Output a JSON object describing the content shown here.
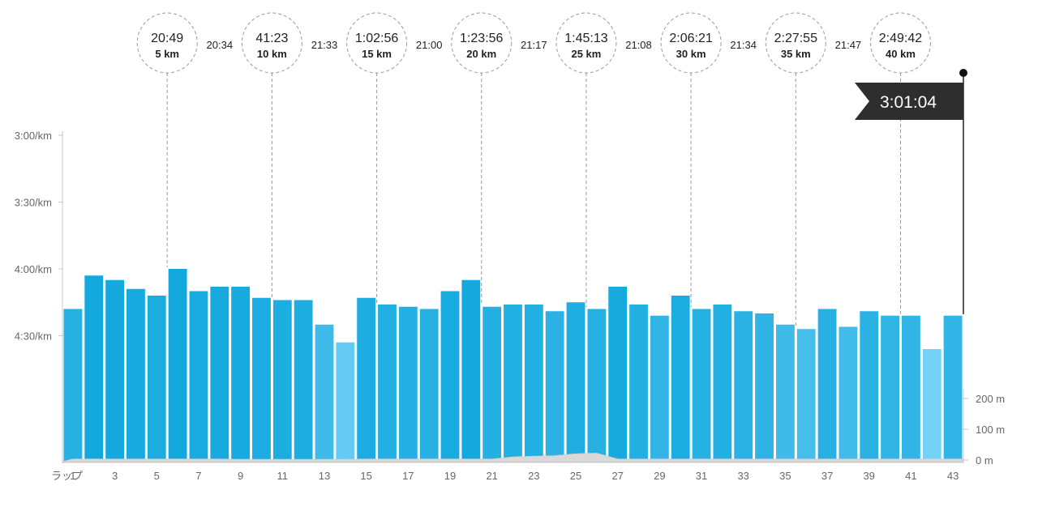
{
  "chart_data": {
    "type": "bar",
    "title": "",
    "xlabel": "",
    "ylabel": "",
    "x_axis_prefix": "ラップ",
    "y_ticks": [
      "3:00/km",
      "3:30/km",
      "4:00/km",
      "4:30/km"
    ],
    "y_range_sec_per_km": [
      180,
      300
    ],
    "elevation_ticks": [
      "200 m",
      "100 m",
      "0 m"
    ],
    "elevation_range_m": [
      0,
      250
    ],
    "x_tick_labels": [
      "1",
      "3",
      "5",
      "7",
      "9",
      "11",
      "13",
      "15",
      "17",
      "19",
      "21",
      "23",
      "25",
      "27",
      "29",
      "31",
      "33",
      "35",
      "37",
      "39",
      "41",
      "43"
    ],
    "bar_color_fast": "#12a8de",
    "bar_color_slow": "#74d2f7",
    "laps": [
      1,
      2,
      3,
      4,
      5,
      6,
      7,
      8,
      9,
      10,
      11,
      12,
      13,
      14,
      15,
      16,
      17,
      18,
      19,
      20,
      21,
      22,
      23,
      24,
      25,
      26,
      27,
      28,
      29,
      30,
      31,
      32,
      33,
      34,
      35,
      36,
      37,
      38,
      39,
      40,
      41,
      42,
      43
    ],
    "pace_sec_per_km": [
      258,
      243,
      245,
      249,
      252,
      240,
      250,
      248,
      248,
      253,
      254,
      254,
      265,
      273,
      253,
      256,
      257,
      258,
      250,
      245,
      257,
      256,
      256,
      259,
      255,
      258,
      248,
      256,
      261,
      252,
      258,
      256,
      259,
      260,
      265,
      267,
      258,
      266,
      259,
      261,
      261,
      276,
      261
    ],
    "elevation_m": [
      3,
      3,
      3,
      3,
      3,
      3,
      3,
      3,
      2,
      2,
      2,
      2,
      2,
      2,
      3,
      3,
      3,
      3,
      3,
      3,
      3,
      10,
      12,
      14,
      20,
      22,
      3,
      3,
      3,
      3,
      3,
      3,
      3,
      3,
      3,
      3,
      3,
      3,
      3,
      3,
      3,
      3,
      3
    ],
    "splits": [
      {
        "time": "20:49",
        "label": "5 km",
        "lap": 5.5
      },
      {
        "time": "41:23",
        "label": "10 km",
        "lap": 10.5
      },
      {
        "time": "1:02:56",
        "label": "15 km",
        "lap": 15.5
      },
      {
        "time": "1:23:56",
        "label": "20 km",
        "lap": 20.5
      },
      {
        "time": "1:45:13",
        "label": "25 km",
        "lap": 25.5
      },
      {
        "time": "2:06:21",
        "label": "30 km",
        "lap": 30.5
      },
      {
        "time": "2:27:55",
        "label": "35 km",
        "lap": 35.5
      },
      {
        "time": "2:49:42",
        "label": "40 km",
        "lap": 40.5
      }
    ],
    "segment_times": [
      "20:34",
      "21:33",
      "21:00",
      "21:17",
      "21:08",
      "21:34",
      "21:47"
    ],
    "finish_time": "3:01:04"
  }
}
